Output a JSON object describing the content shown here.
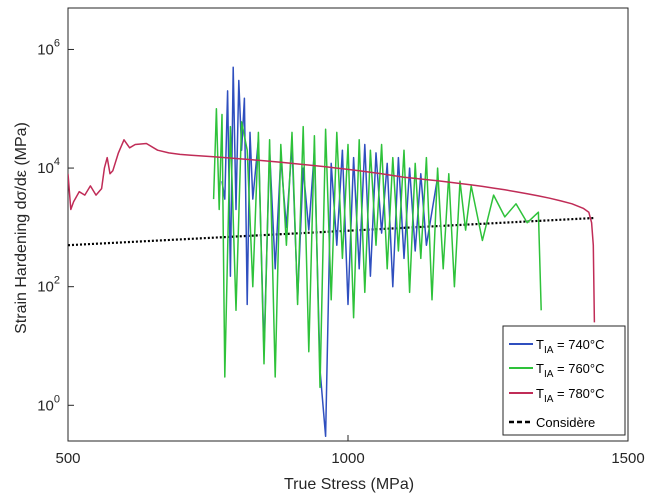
{
  "chart_data": {
    "type": "line",
    "xlabel": "True Stress (MPa)",
    "ylabel": "Strain Hardening dσ/dε (MPa)",
    "xlim": [
      500,
      1500
    ],
    "ylim": [
      0.25,
      5000000
    ],
    "y_scale": "log",
    "x_ticks": [
      {
        "value": 500,
        "label": "500"
      },
      {
        "value": 1000,
        "label": "1000"
      },
      {
        "value": 1500,
        "label": "1500"
      }
    ],
    "y_ticks": [
      {
        "value": 1,
        "base": "10",
        "exp": "0"
      },
      {
        "value": 100,
        "base": "10",
        "exp": "2"
      },
      {
        "value": 10000,
        "base": "10",
        "exp": "4"
      },
      {
        "value": 1000000,
        "base": "10",
        "exp": "6"
      }
    ],
    "grid": false,
    "legend_position": "bottom-right",
    "series": [
      {
        "name": "T_IA = 740°C",
        "legend": {
          "prefix": "T",
          "sub": "IA",
          "suffix": " = 740°C"
        },
        "color": "#2f4fbf",
        "style": "solid",
        "x": [
          775,
          780,
          785,
          790,
          795,
          800,
          805,
          810,
          815,
          820,
          825,
          830,
          840,
          850,
          860,
          870,
          880,
          890,
          900,
          910,
          920,
          930,
          940,
          950,
          960,
          970,
          980,
          990,
          1000,
          1010,
          1020,
          1030,
          1040,
          1050,
          1060,
          1070,
          1080,
          1090,
          1100,
          1110,
          1120,
          1130,
          1140,
          1160
        ],
        "y": [
          6000,
          3000,
          200000,
          150,
          500000,
          2000,
          300000,
          20000,
          150000,
          50,
          40000,
          3000,
          30000,
          8,
          20000,
          200,
          15000,
          1000,
          25000,
          60,
          10000,
          900,
          20000,
          4,
          0.3,
          12000,
          500,
          20000,
          50,
          15000,
          200,
          25000,
          150,
          18000,
          800,
          12000,
          100,
          15000,
          300,
          10000,
          400,
          8000,
          500,
          7000
        ]
      },
      {
        "name": "T_IA = 760°C",
        "legend": {
          "prefix": "T",
          "sub": "IA",
          "suffix": " = 760°C"
        },
        "color": "#2ec23a",
        "style": "solid",
        "x": [
          760,
          765,
          770,
          775,
          780,
          790,
          800,
          810,
          820,
          830,
          840,
          850,
          860,
          870,
          880,
          890,
          900,
          910,
          920,
          930,
          940,
          950,
          960,
          970,
          980,
          990,
          1000,
          1010,
          1020,
          1030,
          1040,
          1050,
          1060,
          1070,
          1080,
          1090,
          1100,
          1110,
          1120,
          1130,
          1140,
          1150,
          1160,
          1170,
          1180,
          1190,
          1200,
          1210,
          1220,
          1240,
          1260,
          1280,
          1300,
          1320,
          1340,
          1345
        ],
        "y": [
          3000,
          100000,
          2000,
          80000,
          3,
          50000,
          40,
          60000,
          20000,
          100,
          40000,
          5,
          30000,
          3,
          25000,
          500,
          40000,
          50,
          50000,
          8,
          35000,
          2,
          45000,
          60,
          40000,
          300,
          25000,
          30,
          30000,
          80,
          20000,
          500,
          25000,
          200,
          15000,
          400,
          20000,
          80,
          12000,
          300,
          15000,
          60,
          10000,
          200,
          8000,
          100,
          6000,
          900,
          5000,
          600,
          3500,
          1500,
          2500,
          1200,
          1800,
          40
        ]
      },
      {
        "name": "T_IA = 780°C",
        "legend": {
          "prefix": "T",
          "sub": "IA",
          "suffix": " = 780°C"
        },
        "color": "#c02c57",
        "style": "solid",
        "x": [
          500,
          505,
          510,
          520,
          530,
          540,
          550,
          560,
          565,
          570,
          575,
          580,
          590,
          600,
          610,
          620,
          640,
          660,
          680,
          700,
          720,
          740,
          760,
          780,
          800,
          820,
          840,
          860,
          880,
          900,
          920,
          940,
          960,
          980,
          1000,
          1020,
          1040,
          1060,
          1080,
          1100,
          1120,
          1140,
          1160,
          1180,
          1200,
          1220,
          1240,
          1260,
          1280,
          1300,
          1320,
          1340,
          1360,
          1380,
          1400,
          1420,
          1430,
          1435,
          1438,
          1440
        ],
        "y": [
          8000,
          2000,
          2700,
          4000,
          3500,
          5000,
          3500,
          4500,
          10000,
          15000,
          8000,
          9000,
          18000,
          30000,
          22000,
          25000,
          26000,
          20000,
          18000,
          17000,
          16500,
          16000,
          15500,
          15000,
          14500,
          14000,
          13500,
          13000,
          12500,
          12000,
          11500,
          11000,
          10500,
          10000,
          9500,
          9000,
          8500,
          8000,
          7500,
          7000,
          6700,
          6400,
          6100,
          5800,
          5500,
          5200,
          4900,
          4600,
          4300,
          4000,
          3700,
          3400,
          3100,
          2800,
          2500,
          2100,
          1800,
          1200,
          500,
          25
        ]
      },
      {
        "name": "Considère",
        "legend": {
          "prefix": "Considère",
          "sub": "",
          "suffix": ""
        },
        "color": "#000000",
        "style": "dotted",
        "x": [
          500,
          1440
        ],
        "y": [
          500,
          1440
        ]
      }
    ]
  }
}
